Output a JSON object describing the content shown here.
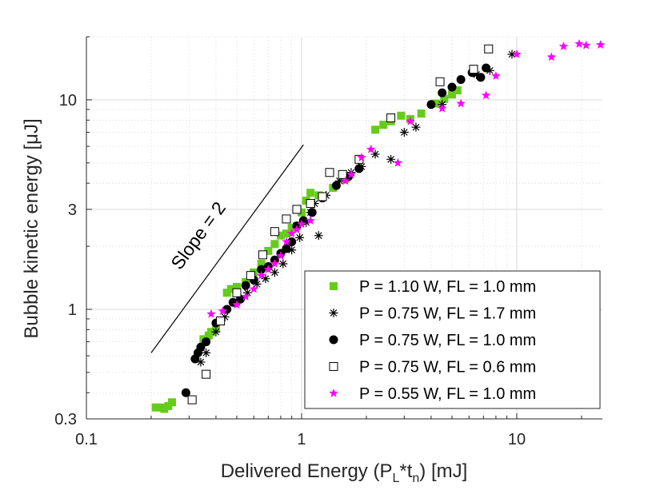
{
  "chart_data": {
    "type": "scatter",
    "title": "",
    "xlabel": "Delivered Energy (P",
    "xlabel_sub1": "L",
    "xlabel_mid": "*t",
    "xlabel_sub2": "n",
    "xlabel_end": ") [mJ]",
    "ylabel": "Bubble kinetic energy [μJ]",
    "x_scale": "log",
    "y_scale": "log",
    "xlim": [
      0.1,
      25
    ],
    "ylim": [
      0.3,
      20
    ],
    "x_ticks": [
      {
        "value": 0.1,
        "label": "0.1"
      },
      {
        "value": 1,
        "label": "1"
      },
      {
        "value": 10,
        "label": "10"
      }
    ],
    "y_ticks": [
      {
        "value": 0.3,
        "label": "0.3"
      },
      {
        "value": 1,
        "label": "1"
      },
      {
        "value": 3,
        "label": "3"
      },
      {
        "value": 10,
        "label": "10"
      }
    ],
    "grid": true,
    "legend_position": "bottom-right",
    "annotation": {
      "text": "Slope = 2",
      "line": [
        [
          0.2,
          0.62
        ],
        [
          1.02,
          6.1
        ]
      ]
    },
    "colors": {
      "green": "#66cc1a",
      "magenta": "#ff00ff",
      "black": "#000000",
      "grid": "#e6e6e6",
      "axis": "#262626"
    },
    "series": [
      {
        "name": "P = 1.10 W, FL = 1.0 mm",
        "marker": "square-filled",
        "color": "#66cc1a",
        "points": [
          [
            0.21,
            0.34
          ],
          [
            0.22,
            0.34
          ],
          [
            0.23,
            0.335
          ],
          [
            0.24,
            0.345
          ],
          [
            0.25,
            0.36
          ],
          [
            0.35,
            0.72
          ],
          [
            0.37,
            0.75
          ],
          [
            0.38,
            0.78
          ],
          [
            0.4,
            0.82
          ],
          [
            0.45,
            1.2
          ],
          [
            0.47,
            1.25
          ],
          [
            0.5,
            1.28
          ],
          [
            0.55,
            1.35
          ],
          [
            0.6,
            1.5
          ],
          [
            0.65,
            1.65
          ],
          [
            0.7,
            1.9
          ],
          [
            0.75,
            2.05
          ],
          [
            0.8,
            2.25
          ],
          [
            0.85,
            2.3
          ],
          [
            0.9,
            2.45
          ],
          [
            0.95,
            2.5
          ],
          [
            1.0,
            2.9
          ],
          [
            1.05,
            3.3
          ],
          [
            1.1,
            3.6
          ],
          [
            1.2,
            3.5
          ],
          [
            1.4,
            3.8
          ],
          [
            1.6,
            4.2
          ],
          [
            2.2,
            7.2
          ],
          [
            2.4,
            7.6
          ],
          [
            2.6,
            7.9
          ],
          [
            2.9,
            8.4
          ],
          [
            3.2,
            8.1
          ],
          [
            3.6,
            8.6
          ],
          [
            4.2,
            9.6
          ],
          [
            4.6,
            10.1
          ],
          [
            5.0,
            10.6
          ],
          [
            5.3,
            11.1
          ]
        ]
      },
      {
        "name": "P = 0.75 W, FL = 1.7 mm",
        "marker": "asterisk",
        "color": "#000000",
        "points": [
          [
            0.34,
            0.56
          ],
          [
            0.36,
            0.62
          ],
          [
            0.4,
            0.78
          ],
          [
            0.44,
            0.92
          ],
          [
            0.5,
            1.08
          ],
          [
            0.56,
            1.2
          ],
          [
            0.62,
            1.32
          ],
          [
            0.68,
            1.4
          ],
          [
            0.75,
            1.5
          ],
          [
            0.82,
            1.65
          ],
          [
            0.9,
            1.92
          ],
          [
            0.98,
            2.2
          ],
          [
            1.05,
            2.6
          ],
          [
            1.1,
            2.9
          ],
          [
            1.15,
            3.2
          ],
          [
            1.2,
            2.25
          ],
          [
            1.3,
            3.5
          ],
          [
            1.5,
            4.1
          ],
          [
            1.7,
            4.5
          ],
          [
            1.9,
            4.8
          ],
          [
            2.2,
            5.5
          ],
          [
            2.6,
            5.2
          ],
          [
            3.0,
            7.0
          ],
          [
            3.4,
            7.4
          ],
          [
            4.5,
            9.5
          ],
          [
            6.5,
            13.2
          ],
          [
            7.5,
            13.8
          ],
          [
            9.5,
            16.5
          ]
        ]
      },
      {
        "name": "P = 0.75 W, FL = 1.0 mm",
        "marker": "circle-filled",
        "color": "#000000",
        "points": [
          [
            0.29,
            0.4
          ],
          [
            0.32,
            0.58
          ],
          [
            0.33,
            0.62
          ],
          [
            0.34,
            0.66
          ],
          [
            0.36,
            0.7
          ],
          [
            0.4,
            0.86
          ],
          [
            0.45,
            1.0
          ],
          [
            0.48,
            1.08
          ],
          [
            0.52,
            1.12
          ],
          [
            0.55,
            1.3
          ],
          [
            0.6,
            1.38
          ],
          [
            0.65,
            1.55
          ],
          [
            0.7,
            1.6
          ],
          [
            0.75,
            1.72
          ],
          [
            0.8,
            1.85
          ],
          [
            0.85,
            1.95
          ],
          [
            0.9,
            2.1
          ],
          [
            0.95,
            2.5
          ],
          [
            1.02,
            2.65
          ],
          [
            1.12,
            2.9
          ],
          [
            1.25,
            3.4
          ],
          [
            1.45,
            3.9
          ],
          [
            1.65,
            4.3
          ],
          [
            1.85,
            4.7
          ],
          [
            4.0,
            9.5
          ],
          [
            4.5,
            10.8
          ],
          [
            5.0,
            11.5
          ],
          [
            5.5,
            12.5
          ],
          [
            6.2,
            13.5
          ],
          [
            6.8,
            12.8
          ],
          [
            7.2,
            14.2
          ]
        ]
      },
      {
        "name": "P = 0.75 W, FL = 0.6 mm",
        "marker": "square-open",
        "color": "#000000",
        "points": [
          [
            0.31,
            0.37
          ],
          [
            0.36,
            0.49
          ],
          [
            0.42,
            0.88
          ],
          [
            0.5,
            1.2
          ],
          [
            0.58,
            1.45
          ],
          [
            0.66,
            1.82
          ],
          [
            0.75,
            2.35
          ],
          [
            0.85,
            2.7
          ],
          [
            0.95,
            3.0
          ],
          [
            1.1,
            3.2
          ],
          [
            1.25,
            3.45
          ],
          [
            1.35,
            4.5
          ],
          [
            1.55,
            4.4
          ],
          [
            1.85,
            5.2
          ],
          [
            2.6,
            8.2
          ],
          [
            4.4,
            12.2
          ],
          [
            6.3,
            14.0
          ],
          [
            7.4,
            17.5
          ]
        ]
      },
      {
        "name": "P = 0.55 W, FL = 1.0 mm",
        "marker": "star",
        "color": "#ff00ff",
        "points": [
          [
            0.38,
            0.95
          ],
          [
            0.43,
            0.98
          ],
          [
            0.5,
            1.05
          ],
          [
            0.55,
            1.15
          ],
          [
            0.6,
            1.25
          ],
          [
            0.65,
            1.45
          ],
          [
            0.7,
            1.55
          ],
          [
            0.75,
            1.65
          ],
          [
            0.8,
            1.8
          ],
          [
            0.85,
            2.1
          ],
          [
            0.9,
            2.3
          ],
          [
            0.95,
            2.4
          ],
          [
            1.0,
            2.55
          ],
          [
            1.1,
            2.65
          ],
          [
            1.6,
            4.1
          ],
          [
            1.7,
            4.4
          ],
          [
            1.9,
            5.3
          ],
          [
            2.1,
            5.8
          ],
          [
            2.8,
            5.0
          ],
          [
            3.2,
            7.9
          ],
          [
            4.5,
            9.1
          ],
          [
            5.5,
            9.6
          ],
          [
            7.2,
            10.5
          ],
          [
            8.0,
            13.0
          ],
          [
            10.0,
            16.5
          ],
          [
            14.5,
            16.0
          ],
          [
            16.5,
            18.0
          ],
          [
            19.5,
            18.5
          ],
          [
            21.0,
            18.2
          ],
          [
            24.5,
            18.3
          ]
        ]
      }
    ]
  }
}
